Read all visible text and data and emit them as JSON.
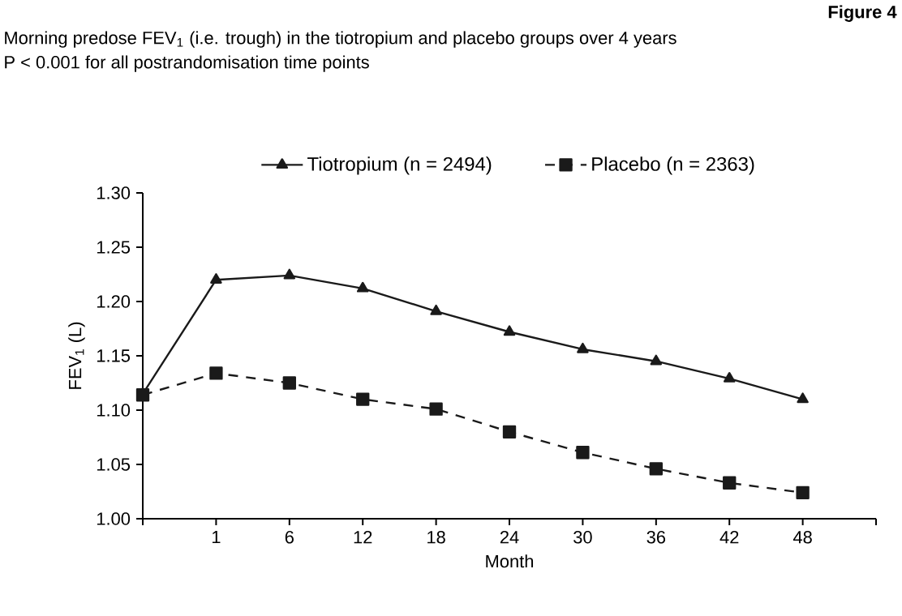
{
  "chart_data": {
    "type": "line",
    "title": "Morning predose FEV$_{1}$ (i.e. trough) in the tiotropium and placebo groups over 4 years",
    "subtitle": "P < 0.001 for all postrandomisation time points",
    "annotations": [
      "Figure 4"
    ],
    "xlabel": "Month",
    "ylabel": "FEV$_{1}$ (L)",
    "categories": [
      null,
      "1",
      "6",
      "12",
      "18",
      "24",
      "30",
      "36",
      "42",
      "48"
    ],
    "series": [
      {
        "name": "Tiotropium (n = 2494)",
        "color": "#1a1a1a",
        "marker": "triangle",
        "line_style": "solid",
        "values": [
          1.115,
          1.22,
          1.224,
          1.212,
          1.191,
          1.172,
          1.156,
          1.145,
          1.129,
          1.11
        ]
      },
      {
        "name": "Placebo (n = 2363)",
        "color": "#1a1a1a",
        "marker": "square",
        "line_style": "dashed",
        "values": [
          1.114,
          1.134,
          1.125,
          1.11,
          1.101,
          1.08,
          1.061,
          1.046,
          1.033,
          1.024
        ]
      }
    ],
    "ylim": [
      1.0,
      1.3
    ],
    "yticks": [
      {
        "value": 1.0,
        "label": "1.00"
      },
      {
        "value": 1.05,
        "label": "1.05"
      },
      {
        "value": 1.1,
        "label": "1.10"
      },
      {
        "value": 1.15,
        "label": "1.15"
      },
      {
        "value": 1.2,
        "label": "1.20"
      },
      {
        "value": 1.25,
        "label": "1.25"
      },
      {
        "value": 1.3,
        "label": "1.30"
      }
    ],
    "grid": false,
    "legend": "top"
  }
}
